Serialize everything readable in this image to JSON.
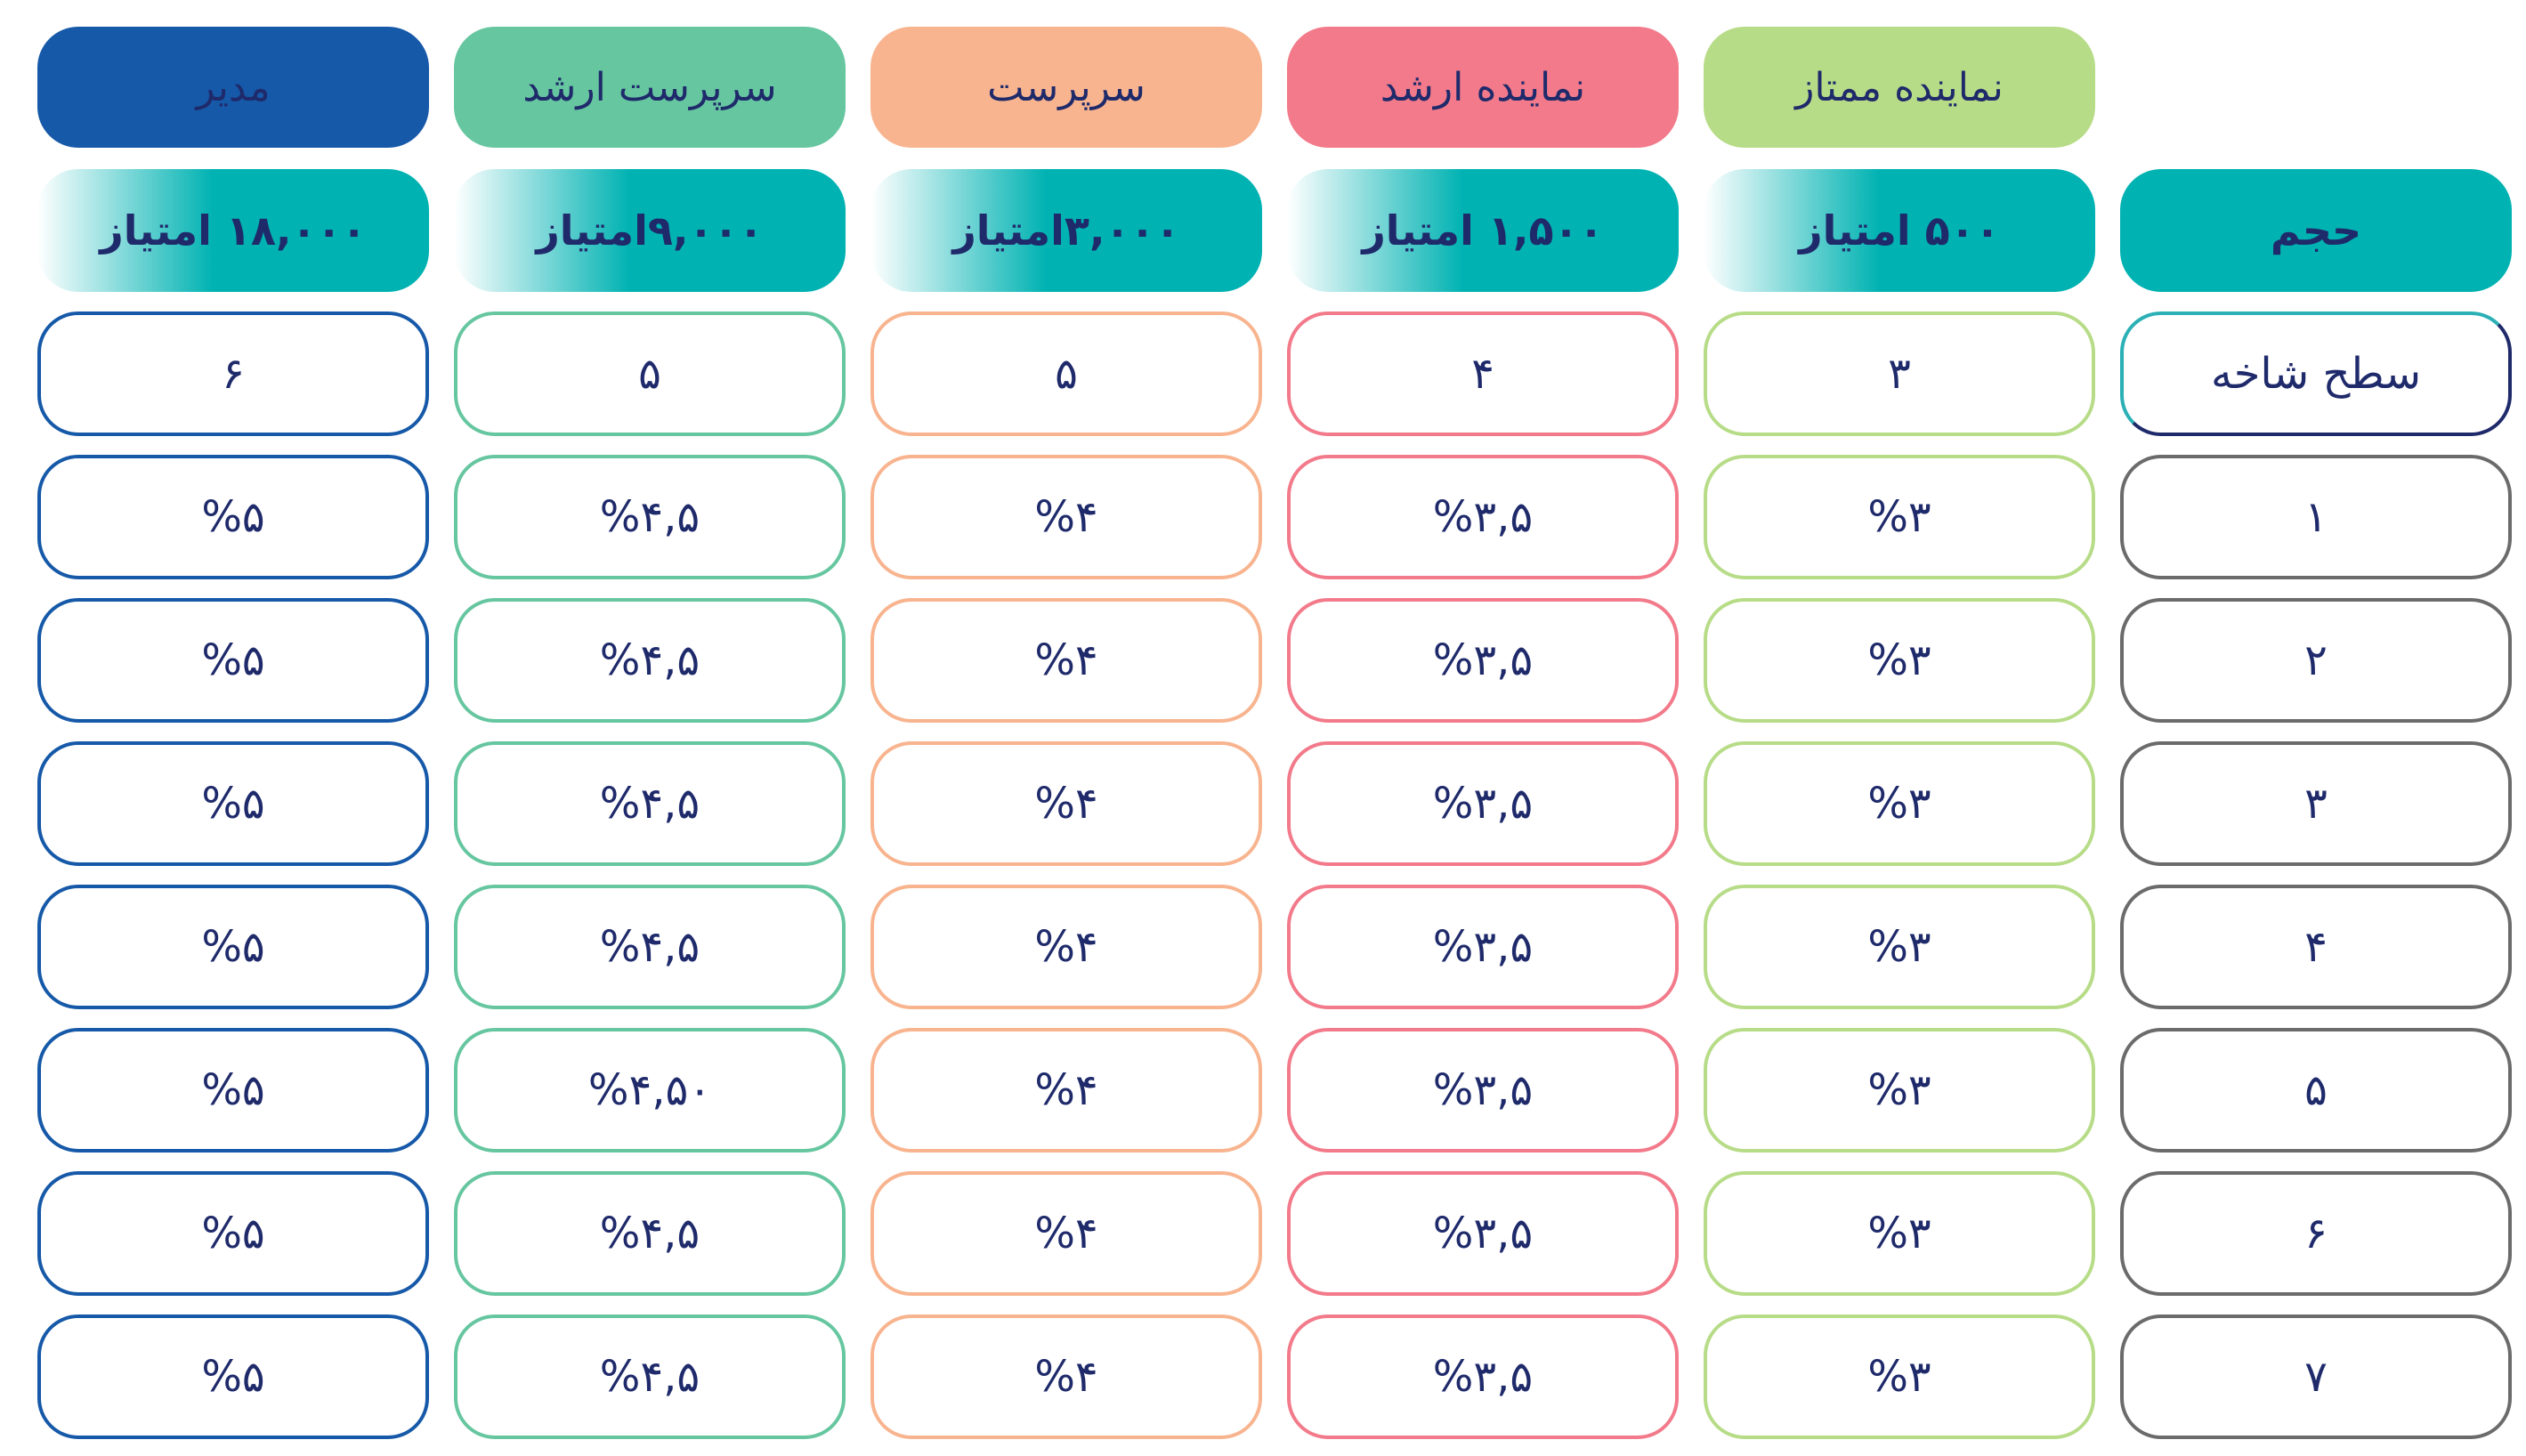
{
  "title_columns": {
    "volume": "حجم",
    "branch_level": "سطح شاخه"
  },
  "columns": [
    {
      "name": "مدیر",
      "points": "۱۸,۰۰۰ امتیاز",
      "branch": "۶",
      "color": "#1659a8",
      "text_color": "#1f2a6b",
      "values": [
        "%۵",
        "%۵",
        "%۵",
        "%۵",
        "%۵",
        "%۵",
        "%۵"
      ]
    },
    {
      "name": "سرپرست ارشد",
      "points": "۹,۰۰۰امتیاز",
      "branch": "۵",
      "color": "#66c6a0",
      "text_color": "#1f2a6b",
      "values": [
        "%۴,۵",
        "%۴,۵",
        "%۴,۵",
        "%۴,۵",
        "%۴,۵۰",
        "%۴,۵",
        "%۴,۵"
      ]
    },
    {
      "name": "سرپرست",
      "points": "۳,۰۰۰امتیاز",
      "branch": "۵",
      "color": "#f8b48f",
      "text_color": "#1f2a6b",
      "values": [
        "%۴",
        "%۴",
        "%۴",
        "%۴",
        "%۴",
        "%۴",
        "%۴"
      ]
    },
    {
      "name": "نماینده ارشد",
      "points": "۱,۵۰۰ امتیاز",
      "branch": "۴",
      "color": "#f27a8a",
      "text_color": "#1f2a6b",
      "values": [
        "%۳,۵",
        "%۳,۵",
        "%۳,۵",
        "%۳,۵",
        "%۳,۵",
        "%۳,۵",
        "%۳,۵"
      ]
    },
    {
      "name": "نماینده ممتاز",
      "points": "۵۰۰ امتیاز",
      "branch": "۳",
      "color": "#b7dc87",
      "text_color": "#1f2a6b",
      "values": [
        "%۳",
        "%۳",
        "%۳",
        "%۳",
        "%۳",
        "%۳",
        "%۳"
      ]
    }
  ],
  "levels": [
    "۱",
    "۲",
    "۳",
    "۴",
    "۵",
    "۶",
    "۷"
  ],
  "colors": {
    "teal": "#00b2b2",
    "level_border": "#6b6b6b",
    "text": "#1f2a6b"
  }
}
